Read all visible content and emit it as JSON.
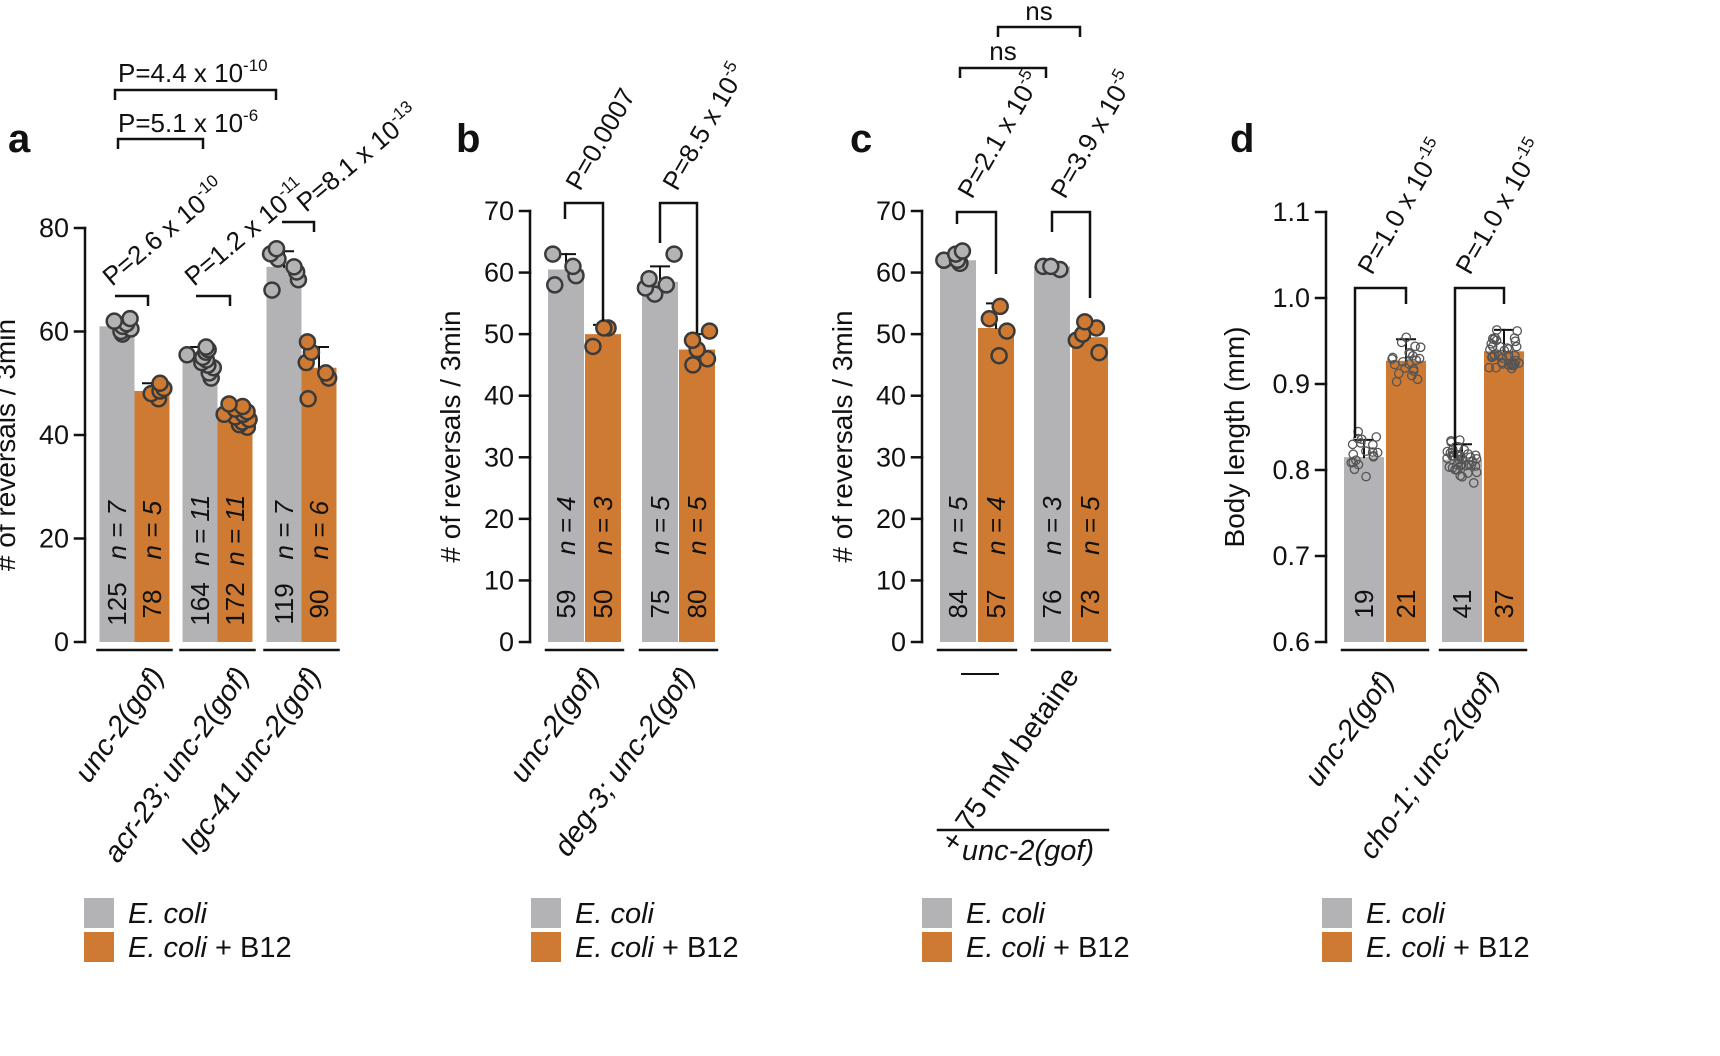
{
  "colors": {
    "gray": "#b3b3b6",
    "orange": "#cf7a33",
    "axis": "#111111",
    "dot_edge": "#3a3a3a"
  },
  "legend": [
    {
      "label": "E. coli",
      "suffix": ""
    },
    {
      "label": "E. coli",
      "suffix": " + B12"
    }
  ],
  "chart_data": [
    {
      "panel": "a",
      "type": "bar",
      "ylabel": "# of reversals / 3min",
      "ylim": [
        0,
        80
      ],
      "yticks": [
        0,
        20,
        40,
        60,
        80
      ],
      "groups": [
        {
          "label": "unc-2(gof)",
          "bars": [
            {
              "series": "E. coli",
              "mean": 61,
              "sd": 1.5,
              "n_label": "n = 7",
              "count_label": "125",
              "points": [
                59.5,
                60,
                60.5,
                61,
                61.5,
                62,
                62.5
              ]
            },
            {
              "series": "E. coli + B12",
              "mean": 48.5,
              "sd": 1.5,
              "n_label": "n = 5",
              "count_label": "78",
              "points": [
                47,
                48,
                48.5,
                49,
                50
              ]
            }
          ]
        },
        {
          "label": "acr-23; unc-2(gof)",
          "bars": [
            {
              "series": "E. coli",
              "mean": 54.5,
              "sd": 2.5,
              "n_label": "n = 11",
              "count_label": "164",
              "points": [
                51,
                52,
                53,
                53.5,
                54,
                54.5,
                55,
                55.5,
                56,
                56.5,
                57
              ]
            },
            {
              "series": "E. coli + B12",
              "mean": 43.5,
              "sd": 1.5,
              "n_label": "n = 11",
              "count_label": "172",
              "points": [
                41.5,
                42,
                42.5,
                43,
                43.5,
                44,
                44,
                44.5,
                45,
                45.5,
                46
              ]
            }
          ]
        },
        {
          "label": "lgc-41 unc-2(gof)",
          "bars": [
            {
              "series": "E. coli",
              "mean": 72.5,
              "sd": 3,
              "n_label": "n = 7",
              "count_label": "119",
              "points": [
                68,
                70,
                71.5,
                72.5,
                74,
                75,
                76
              ]
            },
            {
              "series": "E. coli + B12",
              "mean": 53,
              "sd": 4,
              "n_label": "n = 6",
              "count_label": "90",
              "points": [
                47,
                51,
                52,
                54,
                56,
                58
              ]
            }
          ]
        }
      ],
      "annotations": [
        "P=2.6 x 10",
        "-10",
        "P=1.2 x 10",
        "-11",
        "P=8.1 x 10",
        "-13",
        "P=5.1 x 10",
        "-6",
        "P=4.4 x 10",
        "-10"
      ]
    },
    {
      "panel": "b",
      "type": "bar",
      "ylabel": "# of reversals / 3min",
      "ylim": [
        0,
        70
      ],
      "yticks": [
        0,
        10,
        20,
        30,
        40,
        50,
        60,
        70
      ],
      "groups": [
        {
          "label": "unc-2(gof)",
          "bars": [
            {
              "series": "E. coli",
              "mean": 60.5,
              "sd": 2.5,
              "n_label": "n = 4",
              "count_label": "59",
              "points": [
                58,
                59.5,
                61,
                63
              ]
            },
            {
              "series": "E. coli + B12",
              "mean": 50,
              "sd": 1.5,
              "n_label": "n = 3",
              "count_label": "50",
              "points": [
                48,
                51,
                51
              ]
            }
          ]
        },
        {
          "label": "deg-3; unc-2(gof)",
          "bars": [
            {
              "series": "E. coli",
              "mean": 58.5,
              "sd": 2.5,
              "n_label": "n = 5",
              "count_label": "75",
              "points": [
                56.5,
                57.5,
                58,
                59,
                63
              ]
            },
            {
              "series": "E. coli + B12",
              "mean": 47.5,
              "sd": 2.5,
              "n_label": "n = 5",
              "count_label": "80",
              "points": [
                45,
                46,
                47.5,
                49,
                50.5
              ]
            }
          ]
        }
      ],
      "annotations": [
        "P=0.0007",
        "P=8.5 x 10",
        "-5"
      ]
    },
    {
      "panel": "c",
      "type": "bar",
      "ylabel": "# of reversals / 3min",
      "ylim": [
        0,
        70
      ],
      "yticks": [
        0,
        10,
        20,
        30,
        40,
        50,
        60,
        70
      ],
      "groups": [
        {
          "label": "—",
          "bars": [
            {
              "series": "E. coli",
              "mean": 62,
              "sd": 1.2,
              "n_label": "n = 5",
              "count_label": "84",
              "points": [
                61.5,
                62,
                62,
                63,
                63.5
              ]
            },
            {
              "series": "E. coli + B12",
              "mean": 51,
              "sd": 4,
              "n_label": "n = 4",
              "count_label": "57",
              "points": [
                46.5,
                50.5,
                52.5,
                54.5
              ]
            }
          ]
        },
        {
          "label": "+ 75 mM betaine",
          "bars": [
            {
              "series": "E. coli",
              "mean": 61,
              "sd": 0.5,
              "n_label": "n = 3",
              "count_label": "76",
              "points": [
                60.5,
                61,
                61
              ]
            },
            {
              "series": "E. coli + B12",
              "mean": 49.5,
              "sd": 2.5,
              "n_label": "n = 5",
              "count_label": "73",
              "points": [
                47,
                49,
                50,
                51,
                52
              ]
            }
          ]
        }
      ],
      "group_caption": "unc-2(gof)",
      "annotations": [
        "P=2.1 x 10",
        "-5",
        "P=3.9 x 10",
        "-5",
        "ns",
        "ns"
      ]
    },
    {
      "panel": "d",
      "type": "bar",
      "ylabel": "Body length (mm)",
      "ylim": [
        0.6,
        1.1
      ],
      "yticks": [
        0.6,
        0.7,
        0.8,
        0.9,
        1.0,
        1.1
      ],
      "ytick_labels": [
        "0.6",
        "0.7",
        "0.8",
        "0.9",
        "1.0",
        "1.1"
      ],
      "groups": [
        {
          "label": "unc-2(gof)",
          "bars": [
            {
              "series": "E. coli",
              "mean": 0.815,
              "sd": 0.02,
              "n_label": "",
              "count_label": "19",
              "points": []
            },
            {
              "series": "E. coli + B12",
              "mean": 0.927,
              "sd": 0.025,
              "n_label": "",
              "count_label": "21",
              "points": []
            }
          ]
        },
        {
          "label": "cho-1; unc-2(gof)",
          "bars": [
            {
              "series": "E. coli",
              "mean": 0.812,
              "sd": 0.018,
              "n_label": "",
              "count_label": "41",
              "points": []
            },
            {
              "series": "E. coli + B12",
              "mean": 0.938,
              "sd": 0.025,
              "n_label": "",
              "count_label": "37",
              "points": []
            }
          ]
        }
      ],
      "annotations": [
        "P=1.0 x 10",
        "-15",
        "P=1.0 x 10",
        "-15"
      ]
    }
  ]
}
